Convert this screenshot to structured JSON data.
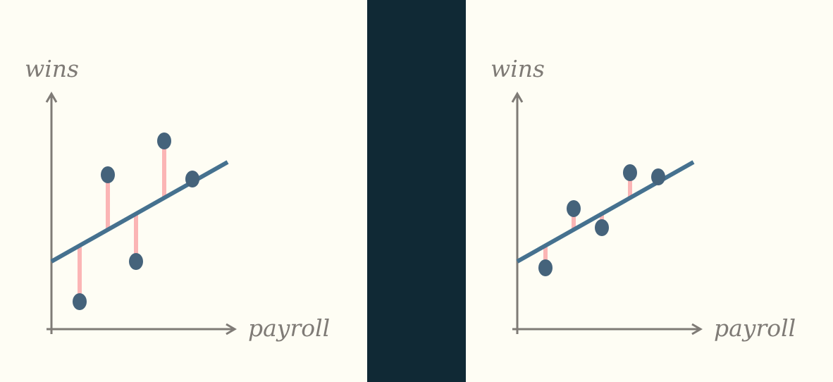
{
  "colors": {
    "background": "#fefdf4",
    "divider": "#102935",
    "axis": "#7f7b76",
    "fit_line": "#45718f",
    "residual": "#fbb5b5",
    "point": "#45637b"
  },
  "chart_data": [
    {
      "type": "scatter",
      "xlabel": "payroll",
      "ylabel": "wins",
      "xlim": [
        0,
        10
      ],
      "ylim": [
        0,
        10
      ],
      "fit_line": [
        [
          0,
          3.2
        ],
        [
          10,
          7.9
        ]
      ],
      "points": [
        {
          "x": 1.6,
          "y": 1.3
        },
        {
          "x": 3.2,
          "y": 7.3
        },
        {
          "x": 4.8,
          "y": 3.2
        },
        {
          "x": 6.4,
          "y": 8.9
        },
        {
          "x": 8.0,
          "y": 7.1
        }
      ],
      "residuals_shown": true
    },
    {
      "type": "scatter",
      "xlabel": "payroll",
      "ylabel": "wins",
      "xlim": [
        0,
        10
      ],
      "ylim": [
        0,
        10
      ],
      "fit_line": [
        [
          0,
          3.2
        ],
        [
          10,
          7.9
        ]
      ],
      "points": [
        {
          "x": 1.6,
          "y": 2.9
        },
        {
          "x": 3.2,
          "y": 5.7
        },
        {
          "x": 4.8,
          "y": 4.8
        },
        {
          "x": 6.4,
          "y": 7.4
        },
        {
          "x": 8.0,
          "y": 7.2
        }
      ],
      "residuals_shown": true
    }
  ]
}
